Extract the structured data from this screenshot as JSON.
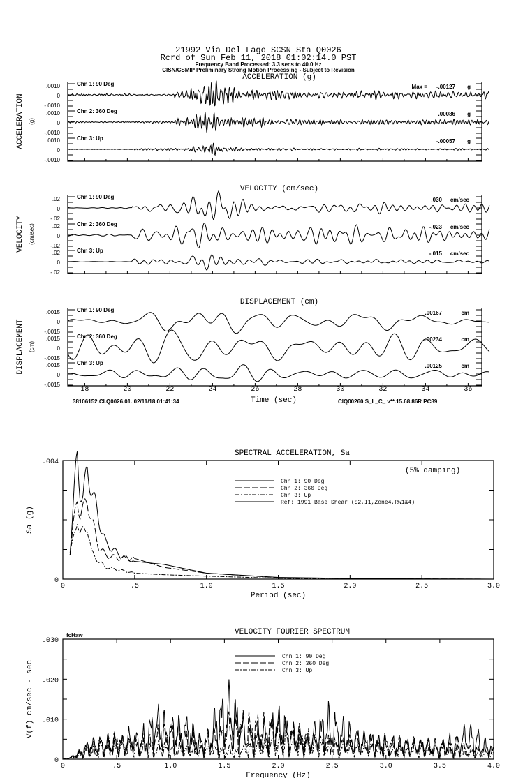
{
  "header": {
    "line1": "21992 Via Del Lago     SCSN Sta Q0026",
    "line2": "Rcrd of Sun Feb 11, 2018 01:02:14.0 PST",
    "line3": "Frequency Band Processed: 3.3 secs to 40.0 Hz",
    "line4": "CISN/CSMIP Preliminary Strong Motion Processing - Subject to Revision"
  },
  "footer": {
    "left": "38106152.CI.Q0026.01. 02/11/18 01:41:34",
    "right": "CIQ00260  S_L_C_  v**.15.68.86R PC89",
    "xlabel": "Time (sec)",
    "xticks": [
      "18",
      "20",
      "22",
      "24",
      "26",
      "28",
      "30",
      "32",
      "34",
      "36"
    ]
  },
  "chart_data": [
    {
      "type": "line",
      "title": "ACCELERATION (g)",
      "ylabel": "ACCELERATION",
      "yunit": "(g)",
      "ymax": 0.001,
      "ytick_top": ".0010",
      "ytick_zero": "0",
      "ytick_bottom": "-.0010",
      "xlim": [
        17.2,
        37.0
      ],
      "max_prefix": "Max =",
      "channels": [
        {
          "label": "Chn 1: 90 Deg",
          "peak": -0.00127,
          "peak_label": "-.00127",
          "unit": "g"
        },
        {
          "label": "Chn 2: 360 Deg",
          "peak": 0.00086,
          "peak_label": ".00086",
          "unit": "g"
        },
        {
          "label": "Chn 3: Up",
          "peak": -0.00057,
          "peak_label": "-.00057",
          "unit": "g"
        }
      ]
    },
    {
      "type": "line",
      "title": "VELOCITY (cm/sec)",
      "ylabel": "VELOCITY",
      "yunit": "(cm/sec)",
      "ymax": 0.02,
      "ytick_top": ".02",
      "ytick_zero": "0",
      "ytick_bottom": "-.02",
      "xlim": [
        17.2,
        37.0
      ],
      "channels": [
        {
          "label": "Chn 1: 90 Deg",
          "peak": 0.03,
          "peak_label": ".030",
          "unit": "cm/sec"
        },
        {
          "label": "Chn 2: 360 Deg",
          "peak": -0.023,
          "peak_label": "-.023",
          "unit": "cm/sec"
        },
        {
          "label": "Chn 3: Up",
          "peak": -0.015,
          "peak_label": "-.015",
          "unit": "cm/sec"
        }
      ]
    },
    {
      "type": "line",
      "title": "DISPLACEMENT (cm)",
      "ylabel": "DISPLACEMENT",
      "yunit": "(cm)",
      "ymax": 0.0015,
      "ytick_top": ".0015",
      "ytick_zero": "0",
      "ytick_bottom": "-.0015",
      "xlim": [
        17.2,
        37.0
      ],
      "channels": [
        {
          "label": "Chn 1: 90 Deg",
          "peak": 0.00167,
          "peak_label": ".00167",
          "unit": "cm"
        },
        {
          "label": "Chn 2: 360 Deg",
          "peak": -0.00234,
          "peak_label": "-.00234",
          "unit": "cm"
        },
        {
          "label": "Chn 3: Up",
          "peak": 0.00125,
          "peak_label": ".00125",
          "unit": "cm"
        }
      ]
    },
    {
      "type": "line",
      "title": "SPECTRAL ACCELERATION, Sa",
      "note": "(5% damping)",
      "xlabel": "Period (sec)",
      "ylabel": "Sa (g)",
      "xlim": [
        0,
        3.0
      ],
      "ylim": [
        0,
        0.004
      ],
      "xticks": [
        "0",
        ".5",
        "1.0",
        "1.5",
        "2.0",
        "2.5",
        "3.0"
      ],
      "yticks": [
        "0",
        ".004"
      ],
      "legend": "top-right",
      "series": [
        {
          "name": "Chn 1: 90 Deg",
          "style": "solid",
          "x": [
            0.05,
            0.08,
            0.1,
            0.12,
            0.14,
            0.17,
            0.2,
            0.25,
            0.3,
            0.4,
            0.5,
            0.7,
            1.0,
            1.5,
            2.0,
            3.0
          ],
          "y": [
            0.001,
            0.003,
            0.0041,
            0.003,
            0.0028,
            0.0036,
            0.0031,
            0.002,
            0.0012,
            0.0008,
            0.0006,
            0.0005,
            0.0002,
            6e-05,
            2e-05,
            0.0
          ]
        },
        {
          "name": "Chn 2: 360 Deg",
          "style": "dashed",
          "x": [
            0.05,
            0.08,
            0.1,
            0.12,
            0.14,
            0.17,
            0.2,
            0.25,
            0.3,
            0.4,
            0.5,
            0.7,
            1.0,
            1.5,
            2.0,
            3.0
          ],
          "y": [
            0.0009,
            0.002,
            0.0028,
            0.0022,
            0.0023,
            0.0027,
            0.002,
            0.0011,
            0.0008,
            0.0007,
            0.0007,
            0.0004,
            0.0002,
            5e-05,
            2e-05,
            0.0
          ]
        },
        {
          "name": "Chn 3: Up",
          "style": "dashdot",
          "x": [
            0.05,
            0.08,
            0.1,
            0.12,
            0.14,
            0.17,
            0.2,
            0.25,
            0.3,
            0.4,
            0.5,
            0.7,
            1.0,
            1.5,
            2.0,
            3.0
          ],
          "y": [
            0.0008,
            0.0015,
            0.0021,
            0.0015,
            0.0016,
            0.0018,
            0.0009,
            0.0006,
            0.0004,
            0.0003,
            0.0002,
            0.00015,
            0.0001,
            3e-05,
            0.0,
            0.0
          ]
        },
        {
          "name": "Ref: 1991 Base Shear (S2,I1,Zone4,Rw1&4)",
          "style": "solid",
          "x": [],
          "y": []
        }
      ]
    },
    {
      "type": "line",
      "title": "VELOCITY FOURIER SPECTRUM",
      "corner_label": "fcHaw",
      "xlabel": "Frequency (Hz)",
      "ylabel": "V(f)   cm/sec - sec",
      "xlim": [
        0,
        4.0
      ],
      "ylim": [
        0,
        0.03
      ],
      "xticks": [
        "0",
        ".5",
        "1.0",
        "1.5",
        "2.0",
        "2.5",
        "3.0",
        "3.5",
        "4.0"
      ],
      "yticks": [
        "0",
        ".010",
        ".020",
        ".030"
      ],
      "legend": "top-center",
      "series": [
        {
          "name": "Chn 1: 90 Deg",
          "style": "solid",
          "x": [
            0,
            0.1,
            0.25,
            0.5,
            0.75,
            0.87,
            1.0,
            1.15,
            1.3,
            1.5,
            1.58,
            1.75,
            2.0,
            2.25,
            2.45,
            2.6,
            3.0,
            3.5,
            3.8,
            4.0
          ],
          "y": [
            0,
            0.001,
            0.005,
            0.007,
            0.008,
            0.015,
            0.01,
            0.012,
            0.005,
            0.018,
            0.019,
            0.008,
            0.014,
            0.006,
            0.014,
            0.01,
            0.006,
            0.005,
            0.009,
            0.003
          ]
        },
        {
          "name": "Chn 2: 360 Deg",
          "style": "dashed",
          "x": [
            0,
            0.1,
            0.25,
            0.5,
            0.75,
            1.0,
            1.3,
            1.6,
            1.8,
            2.0,
            2.2,
            2.5,
            3.0,
            3.5,
            4.0
          ],
          "y": [
            0,
            0.001,
            0.005,
            0.006,
            0.006,
            0.01,
            0.006,
            0.013,
            0.012,
            0.011,
            0.008,
            0.006,
            0.006,
            0.005,
            0.003
          ]
        },
        {
          "name": "Chn 3: Up",
          "style": "dashdot",
          "x": [
            0,
            0.1,
            0.25,
            0.5,
            0.75,
            1.0,
            1.3,
            1.6,
            1.9,
            2.2,
            2.5,
            3.0,
            3.5,
            4.0
          ],
          "y": [
            0,
            0.001,
            0.004,
            0.006,
            0.005,
            0.004,
            0.004,
            0.003,
            0.006,
            0.008,
            0.005,
            0.004,
            0.004,
            0.002
          ]
        }
      ]
    }
  ]
}
